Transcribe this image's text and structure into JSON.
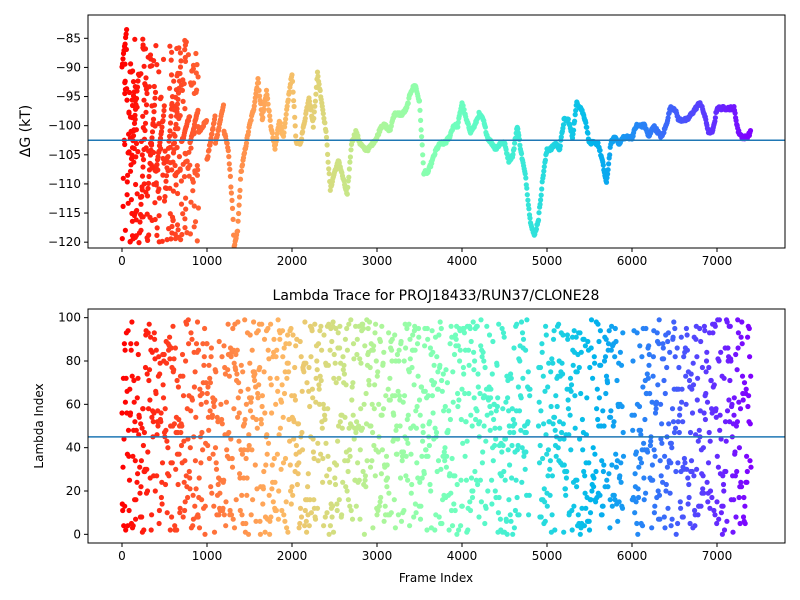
{
  "chart_data": [
    {
      "type": "scatter",
      "title": "",
      "xlabel": "",
      "ylabel": "ΔG (kT)",
      "xlim": [
        -400,
        7800
      ],
      "ylim": [
        -121,
        -81
      ],
      "xticks": [
        0,
        1000,
        2000,
        3000,
        4000,
        5000,
        6000,
        7000
      ],
      "yticks": [
        -85,
        -90,
        -95,
        -100,
        -105,
        -110,
        -115,
        -120
      ],
      "hline": -102.5,
      "hline_color": "#1f77b4",
      "colormap": "rainbow (reversed: early frames red, late frames violet)",
      "n_frames": 7400,
      "series": [
        {
          "points": [
            [
              0,
              -120
            ],
            [
              0,
              -110
            ],
            [
              0,
              -100
            ],
            [
              0,
              -95
            ],
            [
              0,
              -90
            ],
            [
              60,
              -83
            ],
            [
              60,
              -95
            ],
            [
              60,
              -105
            ],
            [
              60,
              -112
            ],
            [
              100,
              -87
            ],
            [
              100,
              -97
            ],
            [
              100,
              -108
            ],
            [
              200,
              -90
            ],
            [
              200,
              -100
            ],
            [
              200,
              -115
            ],
            [
              200,
              -120
            ],
            [
              300,
              -93
            ],
            [
              300,
              -103
            ],
            [
              300,
              -112
            ],
            [
              400,
              -93
            ],
            [
              400,
              -100
            ],
            [
              400,
              -108
            ],
            [
              500,
              -97
            ],
            [
              500,
              -104
            ],
            [
              500,
              -113
            ],
            [
              600,
              -94
            ],
            [
              600,
              -100
            ],
            [
              600,
              -106
            ],
            [
              700,
              -88
            ],
            [
              700,
              -96
            ],
            [
              700,
              -103
            ],
            [
              800,
              -98
            ],
            [
              800,
              -103
            ],
            [
              900,
              -97
            ],
            [
              900,
              -101
            ],
            [
              1000,
              -99
            ],
            [
              1000,
              -106
            ],
            [
              1100,
              -98
            ],
            [
              1100,
              -103
            ],
            [
              1200,
              -96
            ],
            [
              1200,
              -101
            ],
            [
              1250,
              -104
            ],
            [
              1300,
              -114
            ],
            [
              1320,
              -121
            ],
            [
              1360,
              -118
            ],
            [
              1400,
              -108
            ],
            [
              1500,
              -100
            ],
            [
              1550,
              -97
            ],
            [
              1600,
              -92
            ],
            [
              1650,
              -99
            ],
            [
              1700,
              -94
            ],
            [
              1750,
              -100
            ],
            [
              1800,
              -104
            ],
            [
              1850,
              -99
            ],
            [
              1900,
              -102
            ],
            [
              1950,
              -96
            ],
            [
              2000,
              -91
            ],
            [
              2050,
              -103
            ],
            [
              2100,
              -103
            ],
            [
              2150,
              -99
            ],
            [
              2200,
              -95
            ],
            [
              2250,
              -100
            ],
            [
              2300,
              -91
            ],
            [
              2350,
              -96
            ],
            [
              2400,
              -101
            ],
            [
              2450,
              -111
            ],
            [
              2500,
              -108
            ],
            [
              2550,
              -106
            ],
            [
              2600,
              -109
            ],
            [
              2650,
              -112
            ],
            [
              2700,
              -103
            ],
            [
              2750,
              -101
            ],
            [
              2800,
              -103
            ],
            [
              2850,
              -104
            ],
            [
              2900,
              -104
            ],
            [
              2950,
              -103
            ],
            [
              3000,
              -102
            ],
            [
              3050,
              -100
            ],
            [
              3100,
              -100
            ],
            [
              3150,
              -101
            ],
            [
              3200,
              -98
            ],
            [
              3250,
              -98
            ],
            [
              3300,
              -98
            ],
            [
              3350,
              -97
            ],
            [
              3400,
              -94
            ],
            [
              3450,
              -93
            ],
            [
              3500,
              -96
            ],
            [
              3550,
              -108
            ],
            [
              3600,
              -108
            ],
            [
              3650,
              -106
            ],
            [
              3700,
              -104
            ],
            [
              3750,
              -103
            ],
            [
              3800,
              -103
            ],
            [
              3850,
              -102
            ],
            [
              3900,
              -100
            ],
            [
              3950,
              -100
            ],
            [
              4000,
              -96
            ],
            [
              4050,
              -99
            ],
            [
              4100,
              -101
            ],
            [
              4150,
              -100
            ],
            [
              4200,
              -98
            ],
            [
              4250,
              -99
            ],
            [
              4300,
              -102
            ],
            [
              4350,
              -103
            ],
            [
              4400,
              -104
            ],
            [
              4450,
              -103
            ],
            [
              4500,
              -103
            ],
            [
              4550,
              -106
            ],
            [
              4600,
              -105
            ],
            [
              4650,
              -100
            ],
            [
              4700,
              -105
            ],
            [
              4750,
              -109
            ],
            [
              4800,
              -116
            ],
            [
              4850,
              -119
            ],
            [
              4900,
              -116
            ],
            [
              4950,
              -109
            ],
            [
              5000,
              -104
            ],
            [
              5050,
              -104
            ],
            [
              5100,
              -103
            ],
            [
              5150,
              -104
            ],
            [
              5200,
              -99
            ],
            [
              5250,
              -99
            ],
            [
              5300,
              -102
            ],
            [
              5350,
              -96
            ],
            [
              5400,
              -97
            ],
            [
              5450,
              -99
            ],
            [
              5500,
              -103
            ],
            [
              5550,
              -103
            ],
            [
              5600,
              -103
            ],
            [
              5650,
              -106
            ],
            [
              5700,
              -110
            ],
            [
              5750,
              -103
            ],
            [
              5800,
              -102
            ],
            [
              5850,
              -103
            ],
            [
              5900,
              -102
            ],
            [
              5950,
              -102
            ],
            [
              6000,
              -102
            ],
            [
              6050,
              -100
            ],
            [
              6100,
              -100
            ],
            [
              6150,
              -100
            ],
            [
              6200,
              -102
            ],
            [
              6250,
              -100
            ],
            [
              6300,
              -101
            ],
            [
              6350,
              -102
            ],
            [
              6400,
              -100
            ],
            [
              6450,
              -97
            ],
            [
              6500,
              -97
            ],
            [
              6550,
              -99
            ],
            [
              6600,
              -99
            ],
            [
              6650,
              -99
            ],
            [
              6700,
              -98
            ],
            [
              6750,
              -97
            ],
            [
              6800,
              -96
            ],
            [
              6850,
              -98
            ],
            [
              6900,
              -101
            ],
            [
              6950,
              -101
            ],
            [
              7000,
              -97
            ],
            [
              7050,
              -97
            ],
            [
              7100,
              -97
            ],
            [
              7150,
              -97
            ],
            [
              7200,
              -97
            ],
            [
              7250,
              -101
            ],
            [
              7300,
              -102
            ],
            [
              7350,
              -102
            ],
            [
              7400,
              -101
            ]
          ]
        }
      ]
    },
    {
      "type": "scatter",
      "title": "Lambda Trace for PROJ18433/RUN37/CLONE28",
      "xlabel": "Frame Index",
      "ylabel": "Lambda Index",
      "xlim": [
        -400,
        7800
      ],
      "ylim": [
        -4,
        104
      ],
      "xticks": [
        0,
        1000,
        2000,
        3000,
        4000,
        5000,
        6000,
        7000
      ],
      "yticks": [
        0,
        20,
        40,
        60,
        80,
        100
      ],
      "hline": 45,
      "hline_color": "#1f77b4",
      "colormap": "rainbow (reversed: early frames red, late frames violet)",
      "n_frames": 7400,
      "value_range": [
        0,
        99
      ],
      "gaps": [
        [
          4800,
          4900
        ],
        [
          5900,
          6000
        ]
      ]
    }
  ]
}
